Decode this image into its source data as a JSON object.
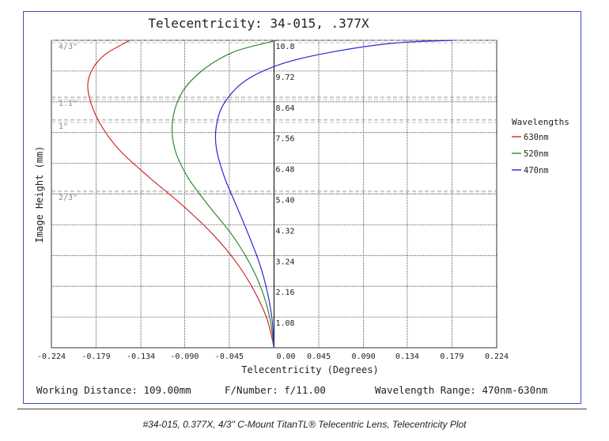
{
  "footer": {
    "working_distance": "Working Distance: 109.00mm",
    "f_number": "F/Number: f/11.00",
    "wavelength_range": "Wavelength Range: 470nm-630nm"
  },
  "caption": "#34-015, 0.377X, 4/3\" C-Mount TitanTL® Telecentric Lens, Telecentricity Plot",
  "chart_data": {
    "type": "line",
    "title": "Telecentricity: 34-015, .377X",
    "xlabel": "Telecentricity (Degrees)",
    "ylabel": "Image Height (mm)",
    "xlim": [
      -0.224,
      0.224
    ],
    "ylim": [
      0,
      10.8
    ],
    "grid": true,
    "legend_title": "Wavelengths",
    "legend_position": "right",
    "x_ticks": [
      {
        "value": -0.224,
        "label": "-0.224"
      },
      {
        "value": -0.179,
        "label": "-0.179"
      },
      {
        "value": -0.134,
        "label": "-0.134"
      },
      {
        "value": -0.09,
        "label": "-0.090"
      },
      {
        "value": -0.045,
        "label": "-0.045"
      },
      {
        "value": 0.0,
        "label": "0.00"
      },
      {
        "value": 0.045,
        "label": "0.045"
      },
      {
        "value": 0.09,
        "label": "0.090"
      },
      {
        "value": 0.134,
        "label": "0.134"
      },
      {
        "value": 0.179,
        "label": "0.179"
      },
      {
        "value": 0.224,
        "label": "0.224"
      }
    ],
    "y_ticks": [
      {
        "value": 1.08,
        "label": "1.08"
      },
      {
        "value": 2.16,
        "label": "2.16"
      },
      {
        "value": 3.24,
        "label": "3.24"
      },
      {
        "value": 4.32,
        "label": "4.32"
      },
      {
        "value": 5.4,
        "label": "5.40"
      },
      {
        "value": 6.48,
        "label": "6.48"
      },
      {
        "value": 7.56,
        "label": "7.56"
      },
      {
        "value": 8.64,
        "label": "8.64"
      },
      {
        "value": 9.72,
        "label": "9.72"
      },
      {
        "value": 10.8,
        "label": "10.8"
      }
    ],
    "sensor_markers": [
      {
        "label": "4/3\"",
        "y": 10.8
      },
      {
        "label": "1.1\"",
        "y": 8.8
      },
      {
        "label": "1\"",
        "y": 8.0
      },
      {
        "label": "2/3\"",
        "y": 5.5
      }
    ],
    "series": [
      {
        "name": "630nm",
        "color": "#d42a2a",
        "points": [
          [
            0,
            0
          ],
          [
            -0.007,
            1.0
          ],
          [
            -0.02,
            2.0
          ],
          [
            -0.038,
            3.0
          ],
          [
            -0.062,
            4.0
          ],
          [
            -0.092,
            5.0
          ],
          [
            -0.126,
            6.0
          ],
          [
            -0.157,
            7.0
          ],
          [
            -0.177,
            8.0
          ],
          [
            -0.187,
            9.0
          ],
          [
            -0.184,
            9.7
          ],
          [
            -0.17,
            10.3
          ],
          [
            -0.145,
            10.8
          ]
        ]
      },
      {
        "name": "520nm",
        "color": "#2f8a2f",
        "points": [
          [
            0,
            0
          ],
          [
            -0.004,
            1.0
          ],
          [
            -0.012,
            2.0
          ],
          [
            -0.025,
            3.0
          ],
          [
            -0.043,
            4.0
          ],
          [
            -0.066,
            5.0
          ],
          [
            -0.087,
            6.0
          ],
          [
            -0.1,
            7.0
          ],
          [
            -0.102,
            8.0
          ],
          [
            -0.092,
            9.0
          ],
          [
            -0.07,
            9.8
          ],
          [
            -0.04,
            10.4
          ],
          [
            0.003,
            10.8
          ]
        ]
      },
      {
        "name": "470nm",
        "color": "#2a2ad4",
        "points": [
          [
            0,
            0
          ],
          [
            -0.002,
            1.0
          ],
          [
            -0.007,
            2.0
          ],
          [
            -0.015,
            3.0
          ],
          [
            -0.026,
            4.0
          ],
          [
            -0.038,
            5.0
          ],
          [
            -0.05,
            6.0
          ],
          [
            -0.058,
            7.0
          ],
          [
            -0.058,
            7.8
          ],
          [
            -0.05,
            8.6
          ],
          [
            -0.028,
            9.4
          ],
          [
            0.01,
            10.0
          ],
          [
            0.06,
            10.4
          ],
          [
            0.12,
            10.7
          ],
          [
            0.18,
            10.8
          ]
        ]
      }
    ]
  }
}
